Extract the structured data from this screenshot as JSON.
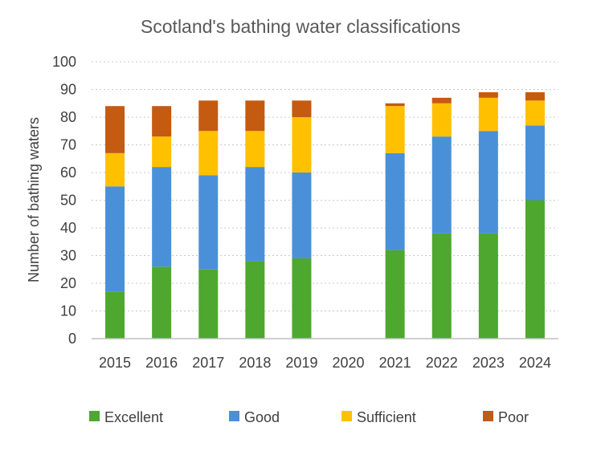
{
  "chart_data": {
    "type": "bar",
    "stacked": true,
    "title": "Scotland's bathing water classifications",
    "xlabel": "",
    "ylabel": "Number of bathing waters",
    "ylim": [
      0,
      100
    ],
    "yticks": [
      "0",
      "10",
      "20",
      "30",
      "40",
      "50",
      "60",
      "70",
      "80",
      "90",
      "100"
    ],
    "grid": true,
    "legend_position": "bottom",
    "categories": [
      "2015",
      "2016",
      "2017",
      "2018",
      "2019",
      "2020",
      "2021",
      "2022",
      "2023",
      "2024"
    ],
    "series": [
      {
        "name": "Excellent",
        "color": "#4ea72e",
        "values": [
          17,
          26,
          25,
          28,
          29,
          null,
          32,
          38,
          38,
          50
        ]
      },
      {
        "name": "Good",
        "color": "#4a90d9",
        "values": [
          38,
          36,
          34,
          34,
          31,
          null,
          35,
          35,
          37,
          27
        ]
      },
      {
        "name": "Sufficient",
        "color": "#ffc000",
        "values": [
          12,
          11,
          16,
          13,
          20,
          null,
          17,
          12,
          12,
          9
        ]
      },
      {
        "name": "Poor",
        "color": "#c55a11",
        "values": [
          17,
          11,
          11,
          11,
          6,
          null,
          1,
          2,
          2,
          3
        ]
      }
    ]
  }
}
